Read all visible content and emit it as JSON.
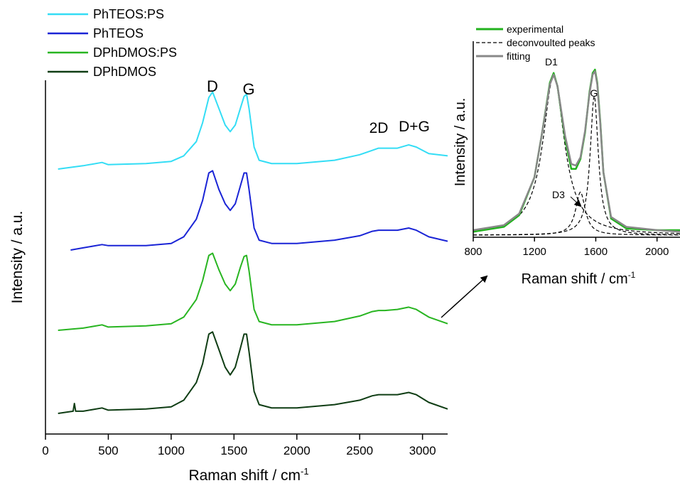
{
  "chart_data": [
    {
      "type": "line",
      "xlabel": "Raman shift / cm",
      "xlabel_sup": "-1",
      "ylabel": "Intensity / a.u.",
      "xlim": [
        0,
        3200
      ],
      "xticks": [
        0,
        500,
        1000,
        1500,
        2000,
        2500,
        3000
      ],
      "yticks_shown": false,
      "legend_position": "top-left",
      "series": [
        {
          "name": "PhTEOS:PS",
          "color": "#33ddf5",
          "x": [
            100,
            300,
            450,
            500,
            800,
            1000,
            1100,
            1200,
            1250,
            1300,
            1330,
            1380,
            1430,
            1470,
            1510,
            1550,
            1580,
            1600,
            1620,
            1660,
            1700,
            1800,
            2000,
            2300,
            2500,
            2600,
            2650,
            2700,
            2800,
            2890,
            2950,
            3050,
            3200
          ],
          "y": [
            0.0,
            0.03,
            0.06,
            0.04,
            0.05,
            0.07,
            0.12,
            0.25,
            0.42,
            0.65,
            0.7,
            0.55,
            0.4,
            0.34,
            0.4,
            0.55,
            0.66,
            0.68,
            0.55,
            0.2,
            0.08,
            0.05,
            0.05,
            0.08,
            0.13,
            0.17,
            0.19,
            0.19,
            0.19,
            0.22,
            0.2,
            0.14,
            0.12
          ]
        },
        {
          "name": "PhTEOS",
          "color": "#1a24d6",
          "x": [
            200,
            300,
            450,
            500,
            800,
            1000,
            1100,
            1200,
            1250,
            1300,
            1330,
            1380,
            1430,
            1470,
            1510,
            1550,
            1580,
            1600,
            1620,
            1660,
            1700,
            1800,
            2000,
            2300,
            2500,
            2600,
            2650,
            2700,
            2800,
            2890,
            2950,
            3050,
            3200
          ],
          "y": [
            0.0,
            0.02,
            0.05,
            0.04,
            0.04,
            0.06,
            0.12,
            0.28,
            0.45,
            0.7,
            0.72,
            0.55,
            0.42,
            0.36,
            0.42,
            0.58,
            0.7,
            0.7,
            0.55,
            0.2,
            0.09,
            0.06,
            0.06,
            0.09,
            0.13,
            0.17,
            0.18,
            0.18,
            0.18,
            0.2,
            0.18,
            0.12,
            0.08
          ]
        },
        {
          "name": "DPhDMOS:PS",
          "color": "#28b521",
          "x": [
            100,
            300,
            450,
            500,
            800,
            1000,
            1100,
            1200,
            1250,
            1300,
            1330,
            1380,
            1430,
            1470,
            1510,
            1550,
            1580,
            1600,
            1620,
            1660,
            1700,
            1800,
            2000,
            2300,
            2500,
            2600,
            2650,
            2700,
            2800,
            2890,
            2950,
            3050,
            3200
          ],
          "y": [
            0.0,
            0.02,
            0.05,
            0.03,
            0.04,
            0.06,
            0.12,
            0.28,
            0.45,
            0.68,
            0.7,
            0.55,
            0.42,
            0.36,
            0.42,
            0.57,
            0.67,
            0.68,
            0.54,
            0.19,
            0.08,
            0.05,
            0.05,
            0.08,
            0.13,
            0.17,
            0.18,
            0.18,
            0.19,
            0.21,
            0.19,
            0.12,
            0.06
          ]
        },
        {
          "name": "DPhDMOS",
          "color": "#0f3d14",
          "x": [
            100,
            220,
            230,
            240,
            300,
            450,
            500,
            800,
            1000,
            1100,
            1200,
            1250,
            1300,
            1330,
            1380,
            1430,
            1470,
            1510,
            1550,
            1580,
            1600,
            1620,
            1660,
            1700,
            1800,
            2000,
            2300,
            2500,
            2600,
            2650,
            2700,
            2800,
            2890,
            2950,
            3050,
            3200
          ],
          "y": [
            0.0,
            0.02,
            0.09,
            0.02,
            0.02,
            0.05,
            0.03,
            0.04,
            0.06,
            0.12,
            0.28,
            0.45,
            0.72,
            0.74,
            0.58,
            0.42,
            0.35,
            0.42,
            0.59,
            0.72,
            0.72,
            0.56,
            0.2,
            0.08,
            0.05,
            0.05,
            0.08,
            0.12,
            0.16,
            0.17,
            0.17,
            0.17,
            0.19,
            0.17,
            0.1,
            0.04
          ]
        }
      ],
      "annotations": [
        {
          "text": "D",
          "x": 1320
        },
        {
          "text": "G",
          "x": 1600
        },
        {
          "text": "2D",
          "x": 2650
        },
        {
          "text": "D+G",
          "x": 2900
        }
      ]
    },
    {
      "type": "line",
      "xlabel": "Raman shift / cm",
      "xlabel_sup": "-1",
      "ylabel": "Intensity / a.u.",
      "xlim": [
        800,
        2150
      ],
      "ylim": [
        0,
        1.1
      ],
      "xticks": [
        800,
        1200,
        1600,
        2000
      ],
      "legend_position": "top-left",
      "series": [
        {
          "name": "experimental",
          "color": "#22b21e",
          "line": "solid",
          "x": [
            800,
            1000,
            1100,
            1200,
            1250,
            1300,
            1325,
            1350,
            1400,
            1440,
            1470,
            1500,
            1530,
            1560,
            1580,
            1595,
            1610,
            1630,
            1650,
            1700,
            1800,
            2000,
            2150
          ],
          "y": [
            0.02,
            0.05,
            0.12,
            0.35,
            0.62,
            0.92,
            0.98,
            0.9,
            0.58,
            0.4,
            0.4,
            0.46,
            0.62,
            0.87,
            0.98,
            1.0,
            0.92,
            0.68,
            0.38,
            0.1,
            0.04,
            0.03,
            0.03
          ]
        },
        {
          "name": "fitting",
          "color": "#888888",
          "line": "solid",
          "x": [
            800,
            1000,
            1100,
            1200,
            1250,
            1300,
            1325,
            1350,
            1400,
            1440,
            1470,
            1500,
            1530,
            1560,
            1580,
            1595,
            1610,
            1630,
            1650,
            1700,
            1800,
            2000,
            2150
          ],
          "y": [
            0.03,
            0.06,
            0.13,
            0.35,
            0.62,
            0.91,
            0.97,
            0.9,
            0.6,
            0.43,
            0.42,
            0.47,
            0.63,
            0.86,
            0.97,
            0.99,
            0.91,
            0.67,
            0.38,
            0.11,
            0.05,
            0.03,
            0.02
          ]
        },
        {
          "name": "deconvoulted peaks",
          "color": "#000000",
          "line": "dashed",
          "peaks": [
            {
              "label": "D1",
              "center": 1325,
              "height": 0.96,
              "width": 85
            },
            {
              "label": "G",
              "center": 1590,
              "height": 0.84,
              "width": 32
            },
            {
              "label": "D3",
              "center": 1500,
              "height": 0.26,
              "width": 38
            }
          ]
        }
      ],
      "annotations": [
        {
          "text": "D1",
          "x": 1325
        },
        {
          "text": "G",
          "x": 1595
        },
        {
          "text": "D3",
          "x": 1450
        }
      ]
    }
  ]
}
